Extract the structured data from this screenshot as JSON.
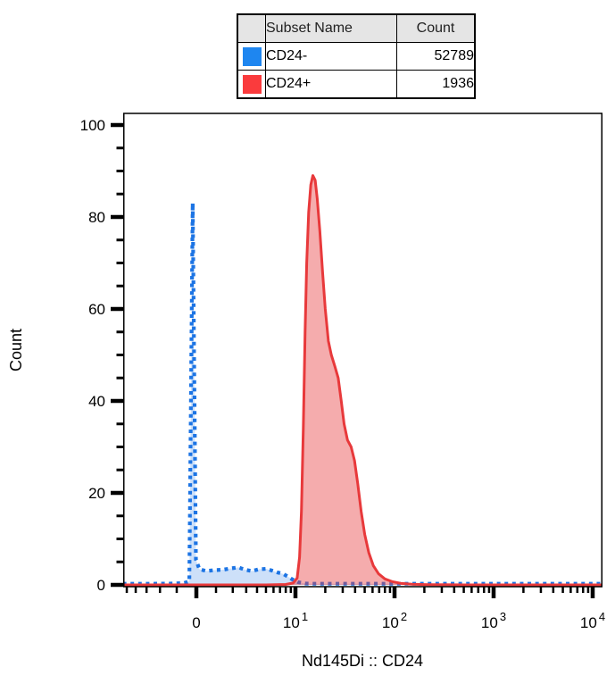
{
  "table": {
    "headers": {
      "subset": "Subset Name",
      "count": "Count"
    },
    "rows": [
      {
        "subset": "CD24-",
        "count": "52789",
        "color": "#1E86F0"
      },
      {
        "subset": "CD24+",
        "count": "1936",
        "color": "#FA3B3D"
      }
    ]
  },
  "chart_data": {
    "type": "area",
    "description": "Flow/mass cytometry overlay histogram of two subsets on a biexponential (arcsinh) x-axis",
    "xlabel": "Nd145Di :: CD24",
    "ylabel": "Count",
    "x_axis": {
      "scale": "biexponential-arcsinh",
      "major_ticks": [
        {
          "value": 0,
          "base": "0",
          "exp": ""
        },
        {
          "value": 10,
          "base": "10",
          "exp": "1"
        },
        {
          "value": 100,
          "base": "10",
          "exp": "2"
        },
        {
          "value": 1000,
          "base": "10",
          "exp": "3"
        },
        {
          "value": 10000,
          "base": "10",
          "exp": "4"
        }
      ]
    },
    "y_axis": {
      "range": [
        0,
        100
      ],
      "ticks": [
        0,
        20,
        40,
        60,
        80,
        100
      ],
      "minor_step": 5
    },
    "grid": false,
    "legend_position": "top-table",
    "series": [
      {
        "name": "CD24-",
        "color": "#1C74E4",
        "fill_opacity": 0.22,
        "line": "dotted",
        "stroke_width": 4.2,
        "peak": {
          "x": -0.18,
          "count": 83
        },
        "points": [
          [
            -5.5,
            0.25
          ],
          [
            -4,
            0.25
          ],
          [
            -2.5,
            0.25
          ],
          [
            -1.2,
            0.3
          ],
          [
            -0.6,
            0.4
          ],
          [
            -0.35,
            0.8
          ],
          [
            -0.18,
            83
          ],
          [
            -0.02,
            5.5
          ],
          [
            0.15,
            3.4
          ],
          [
            0.5,
            3.0
          ],
          [
            0.9,
            3.2
          ],
          [
            1.4,
            3.3
          ],
          [
            1.9,
            3.6
          ],
          [
            2.4,
            3.8
          ],
          [
            2.9,
            3.3
          ],
          [
            3.5,
            3.0
          ],
          [
            4.2,
            3.4
          ],
          [
            5.0,
            3.5
          ],
          [
            5.8,
            3.1
          ],
          [
            6.6,
            2.7
          ],
          [
            7.5,
            2.4
          ],
          [
            8.4,
            1.8
          ],
          [
            9.3,
            1.2
          ],
          [
            10.6,
            0.6
          ],
          [
            12.5,
            0.3
          ],
          [
            15,
            0.25
          ],
          [
            25,
            0.25
          ],
          [
            60,
            0.25
          ],
          [
            150,
            0.25
          ],
          [
            400,
            0.25
          ],
          [
            1000,
            0.25
          ],
          [
            2500,
            0.25
          ],
          [
            6000,
            0.25
          ],
          [
            12500,
            0.25
          ]
        ]
      },
      {
        "name": "CD24+",
        "color": "#E8393B",
        "fill_opacity": 0.42,
        "line": "solid",
        "stroke_width": 3,
        "peak": {
          "x": 15,
          "count": 89
        },
        "points": [
          [
            -5.5,
            0
          ],
          [
            -2,
            0
          ],
          [
            0,
            0
          ],
          [
            2,
            0
          ],
          [
            5,
            0
          ],
          [
            8,
            0.1
          ],
          [
            9.5,
            0.4
          ],
          [
            10.4,
            1.5
          ],
          [
            11,
            6
          ],
          [
            11.5,
            16
          ],
          [
            12,
            34
          ],
          [
            12.5,
            55
          ],
          [
            13,
            70
          ],
          [
            13.6,
            81
          ],
          [
            14.3,
            87
          ],
          [
            15,
            89
          ],
          [
            15.8,
            88
          ],
          [
            16.6,
            84
          ],
          [
            17.6,
            77
          ],
          [
            18.8,
            68
          ],
          [
            20,
            60
          ],
          [
            21.5,
            53
          ],
          [
            23,
            50
          ],
          [
            25,
            47.5
          ],
          [
            27,
            45
          ],
          [
            29,
            40
          ],
          [
            31,
            35
          ],
          [
            33.5,
            31.5
          ],
          [
            36.5,
            30
          ],
          [
            39.5,
            27
          ],
          [
            42.5,
            22
          ],
          [
            46,
            16
          ],
          [
            50,
            11
          ],
          [
            55,
            7
          ],
          [
            61,
            4.2
          ],
          [
            69,
            2.4
          ],
          [
            80,
            1.3
          ],
          [
            95,
            0.7
          ],
          [
            115,
            0.35
          ],
          [
            150,
            0.15
          ],
          [
            220,
            0.05
          ],
          [
            500,
            0
          ],
          [
            2000,
            0
          ],
          [
            12500,
            0
          ]
        ]
      }
    ]
  }
}
